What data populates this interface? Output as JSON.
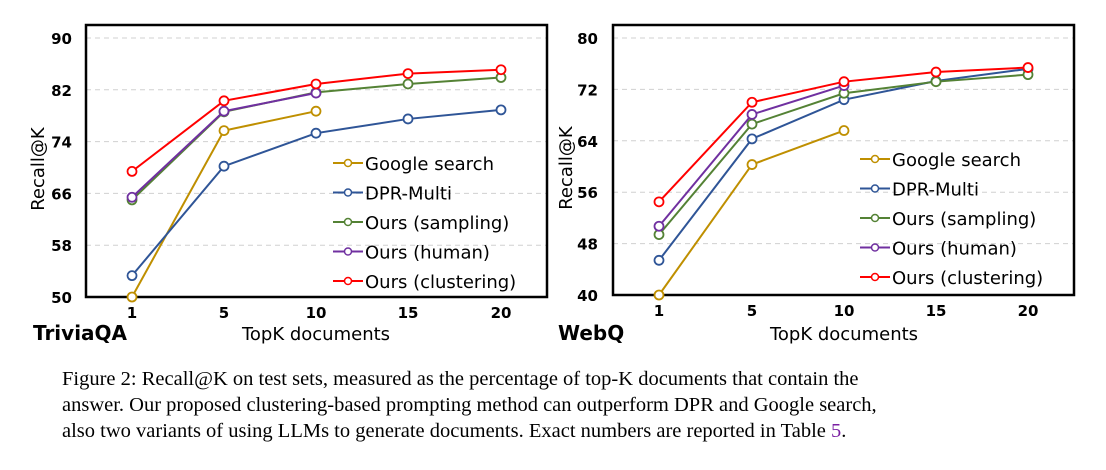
{
  "chart_data": [
    {
      "type": "line",
      "panel_label": "TriviaQA",
      "xlabel": "TopK documents",
      "ylabel": "Recall@K",
      "x": [
        1,
        5,
        10,
        15,
        20
      ],
      "x_ticks": [
        "1",
        "5",
        "10",
        "15",
        "20"
      ],
      "ylim": [
        50,
        90
      ],
      "y_ticks": [
        50,
        58,
        66,
        74,
        82,
        90
      ],
      "grid": "horizontal dashed",
      "legend_position": "bottom-right",
      "series": [
        {
          "name": "Google search",
          "color": "#BF8F00",
          "values": [
            50.0,
            75.7,
            78.7,
            null,
            null
          ]
        },
        {
          "name": "DPR-Multi",
          "color": "#2F5597",
          "values": [
            53.3,
            70.2,
            75.3,
            77.5,
            78.9
          ]
        },
        {
          "name": "Ours (sampling)",
          "color": "#548235",
          "values": [
            65.0,
            78.6,
            81.6,
            82.9,
            83.9
          ]
        },
        {
          "name": "Ours (human)",
          "color": "#7030A0",
          "values": [
            65.4,
            78.7,
            81.5,
            null,
            null
          ]
        },
        {
          "name": "Ours (clustering)",
          "color": "#FF0000",
          "values": [
            69.4,
            80.3,
            82.9,
            84.5,
            85.1
          ]
        }
      ]
    },
    {
      "type": "line",
      "panel_label": "WebQ",
      "xlabel": "TopK documents",
      "ylabel": "Recall@K",
      "x": [
        1,
        5,
        10,
        15,
        20
      ],
      "x_ticks": [
        "1",
        "5",
        "10",
        "15",
        "20"
      ],
      "ylim": [
        40,
        80
      ],
      "y_ticks": [
        40,
        48,
        56,
        64,
        72,
        80
      ],
      "grid": "horizontal dashed",
      "legend_position": "bottom-right",
      "series": [
        {
          "name": "Google search",
          "color": "#BF8F00",
          "values": [
            40.0,
            60.3,
            65.6,
            null,
            null
          ]
        },
        {
          "name": "DPR-Multi",
          "color": "#2F5597",
          "values": [
            45.4,
            64.3,
            70.4,
            73.3,
            75.2
          ]
        },
        {
          "name": "Ours (sampling)",
          "color": "#548235",
          "values": [
            49.4,
            66.6,
            71.4,
            73.2,
            74.3
          ]
        },
        {
          "name": "Ours (human)",
          "color": "#7030A0",
          "values": [
            50.7,
            68.1,
            72.6,
            null,
            null
          ]
        },
        {
          "name": "Ours (clustering)",
          "color": "#FF0000",
          "values": [
            54.5,
            70.0,
            73.2,
            74.7,
            75.4
          ]
        }
      ]
    }
  ],
  "caption": {
    "line1": "Figure 2: Recall@K on test sets, measured as the percentage of top-K documents that contain the",
    "line2": "answer. Our proposed clustering-based prompting method can outperform DPR and Google search,",
    "line3_before_ref": "also two variants of using LLMs to generate documents. Exact numbers are reported in Table ",
    "ref": "5",
    "line3_after_ref": "."
  }
}
